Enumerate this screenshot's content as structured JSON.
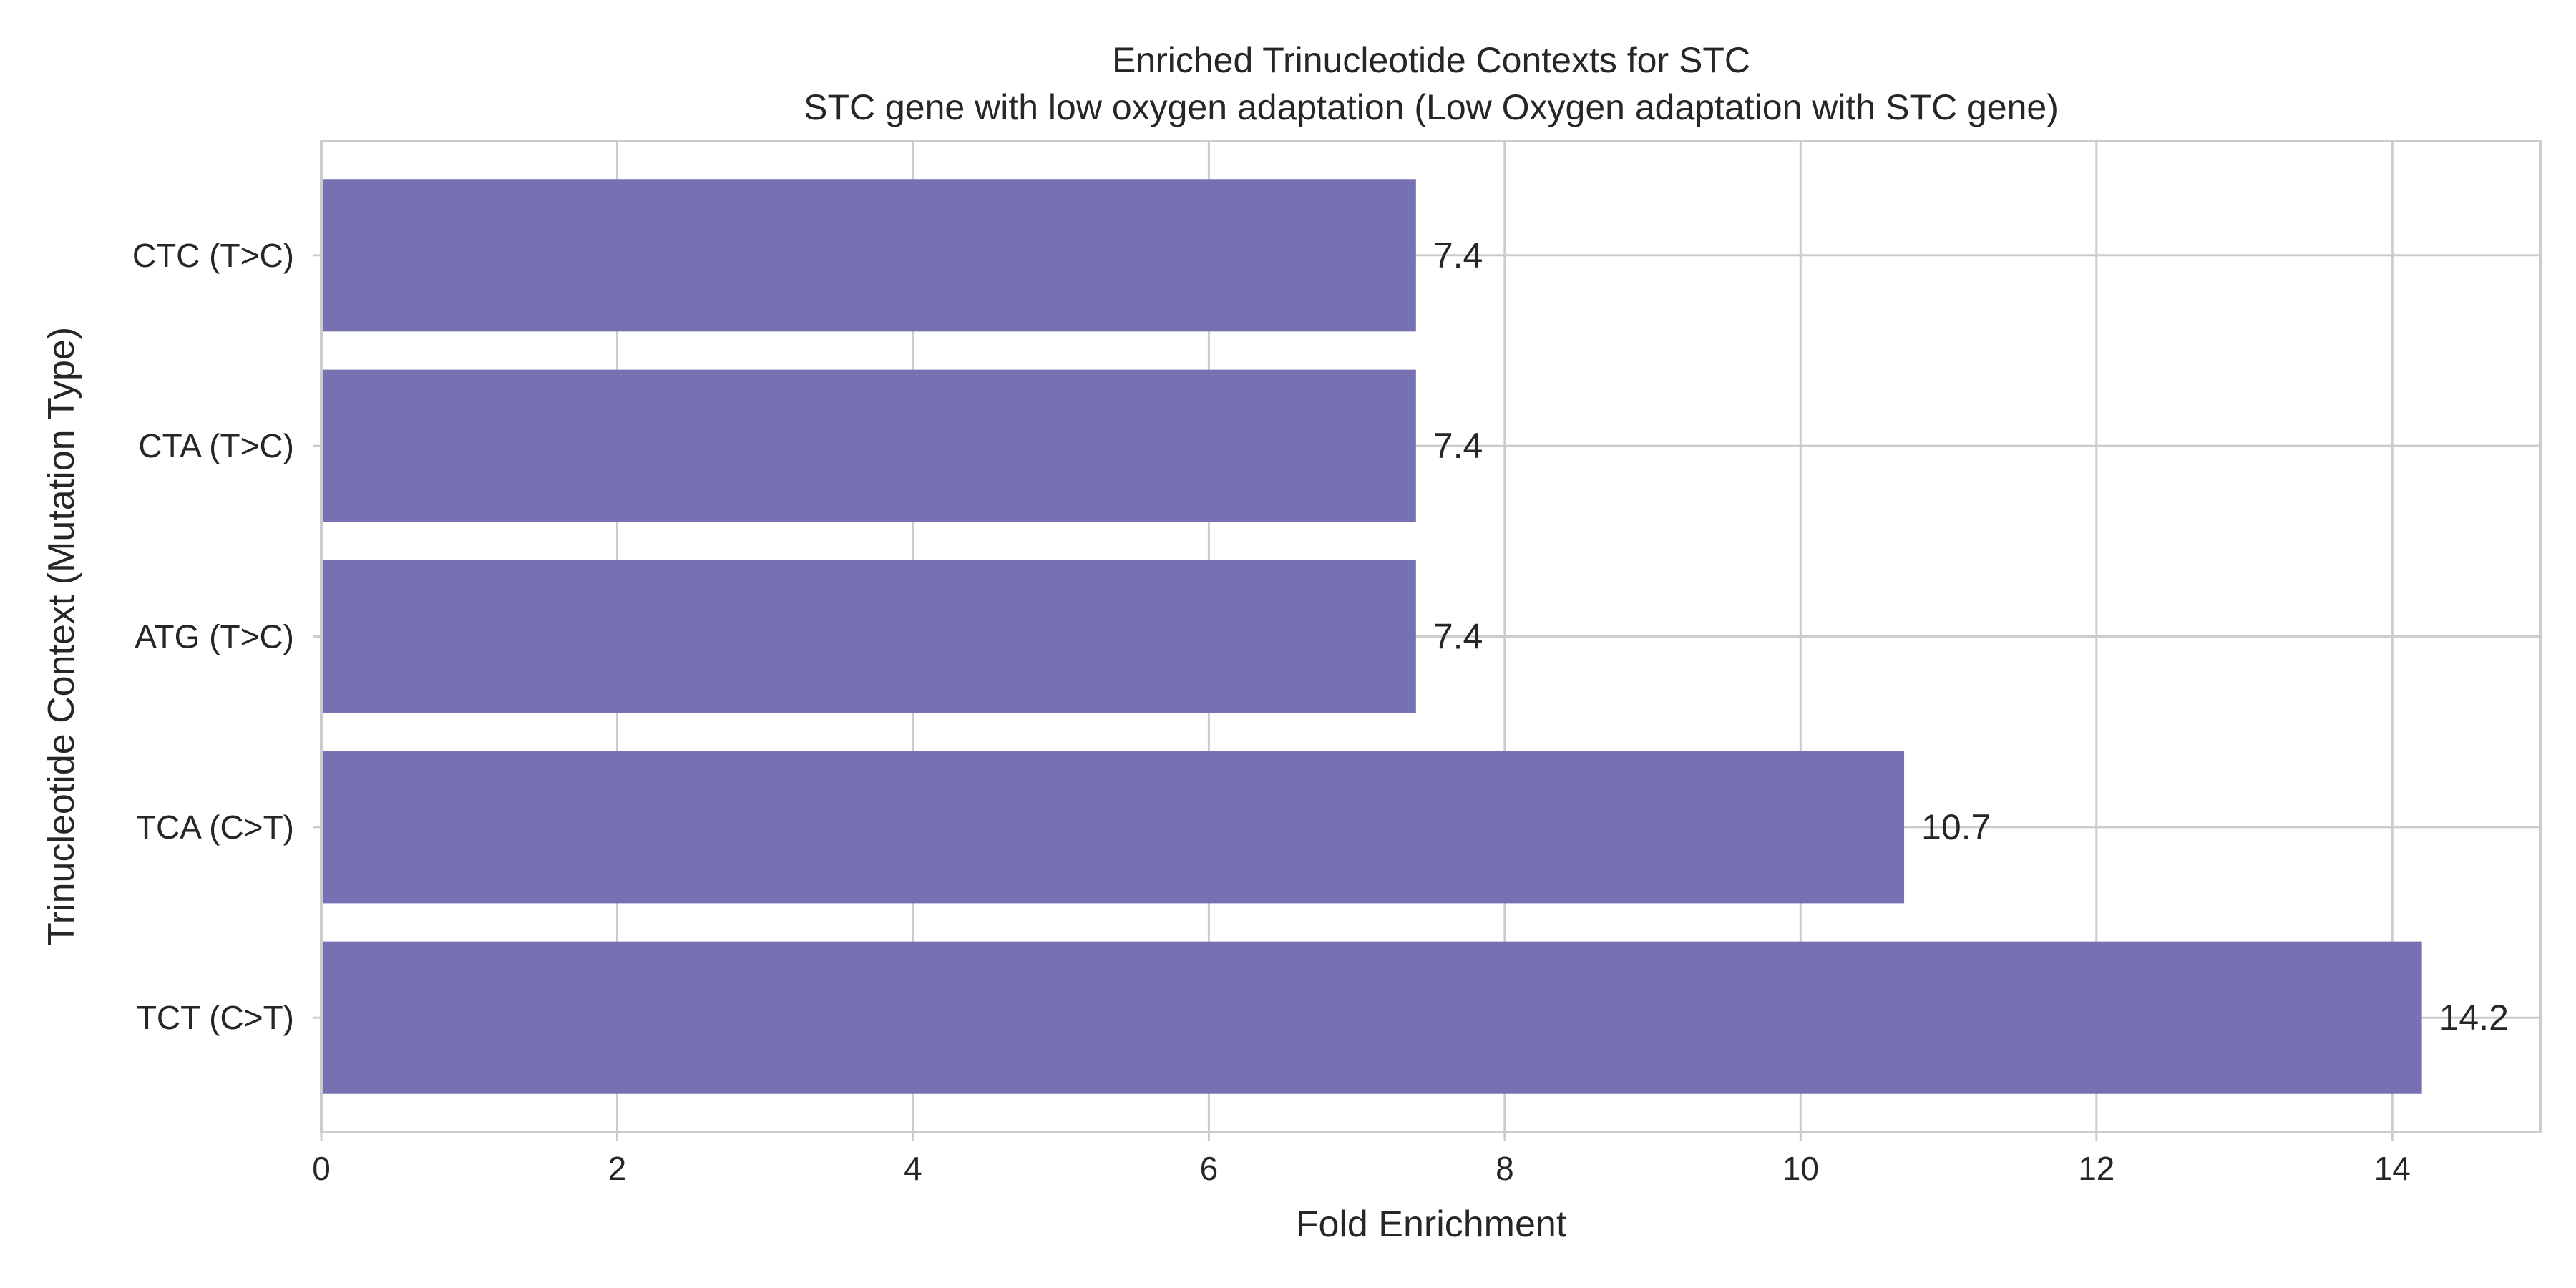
{
  "chart_data": {
    "type": "bar",
    "orientation": "horizontal",
    "title": "Enriched Trinucleotide Contexts for STC",
    "subtitle": "STC gene with low oxygen adaptation (Low Oxygen adaptation with STC gene)",
    "xlabel": "Fold Enrichment",
    "ylabel": "Trinucleotide Context (Mutation Type)",
    "xlim": [
      0,
      15
    ],
    "xticks": [
      0,
      2,
      4,
      6,
      8,
      10,
      12,
      14
    ],
    "categories": [
      "TCT (C>T)",
      "TCA (C>T)",
      "ATG (T>C)",
      "CTA (T>C)",
      "CTC (T>C)"
    ],
    "values": [
      14.2,
      10.7,
      7.4,
      7.4,
      7.4
    ],
    "data_labels": [
      "14.2",
      "10.7",
      "7.4",
      "7.4",
      "7.4"
    ],
    "grid": true,
    "bar_color": "#7571b3"
  }
}
